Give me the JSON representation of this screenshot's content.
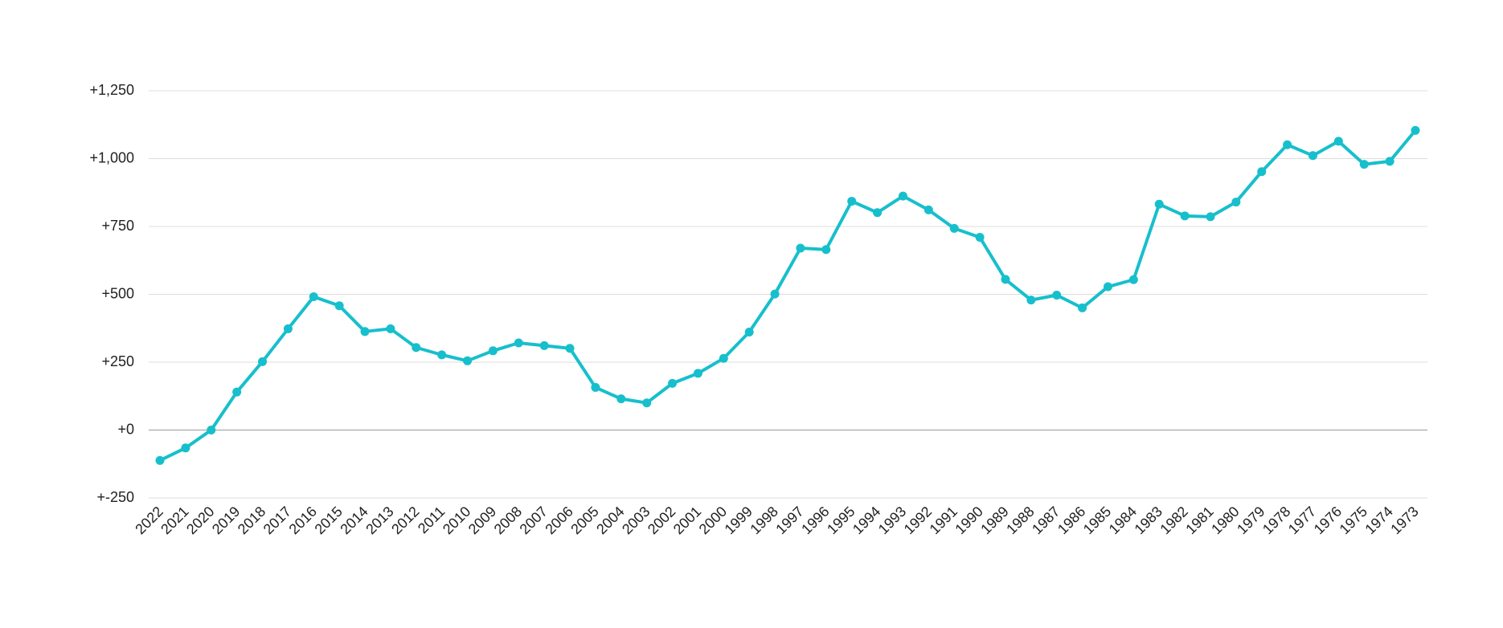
{
  "chart_data": {
    "type": "line",
    "title": "",
    "xlabel": "",
    "ylabel": "",
    "x": [
      "2022",
      "2021",
      "2020",
      "2019",
      "2018",
      "2017",
      "2016",
      "2015",
      "2014",
      "2013",
      "2012",
      "2011",
      "2010",
      "2009",
      "2008",
      "2007",
      "2006",
      "2005",
      "2004",
      "2003",
      "2002",
      "2001",
      "2000",
      "1999",
      "1998",
      "1997",
      "1996",
      "1995",
      "1994",
      "1993",
      "1992",
      "1991",
      "1990",
      "1989",
      "1988",
      "1987",
      "1986",
      "1985",
      "1984",
      "1983",
      "1982",
      "1981",
      "1980",
      "1979",
      "1978",
      "1977",
      "1976",
      "1975",
      "1974",
      "1973"
    ],
    "series": [
      {
        "name": "",
        "color": "#17bfcc",
        "values": [
          -112,
          -66,
          0,
          140,
          252,
          373,
          491,
          458,
          363,
          373,
          304,
          277,
          255,
          292,
          321,
          311,
          301,
          157,
          115,
          100,
          172,
          209,
          264,
          361,
          501,
          670,
          665,
          843,
          801,
          862,
          811,
          743,
          710,
          555,
          479,
          497,
          450,
          528,
          554,
          832,
          789,
          786,
          840,
          952,
          1051,
          1011,
          1064,
          979,
          990,
          1104
        ]
      }
    ],
    "ylim": [
      -250,
      1250
    ],
    "yticks": [
      -250,
      0,
      250,
      500,
      750,
      1000,
      1250
    ],
    "ytick_labels": [
      "+-250",
      "+0",
      "+250",
      "+500",
      "+750",
      "+1,000",
      "+1,250"
    ],
    "grid": true,
    "legend": "none"
  }
}
